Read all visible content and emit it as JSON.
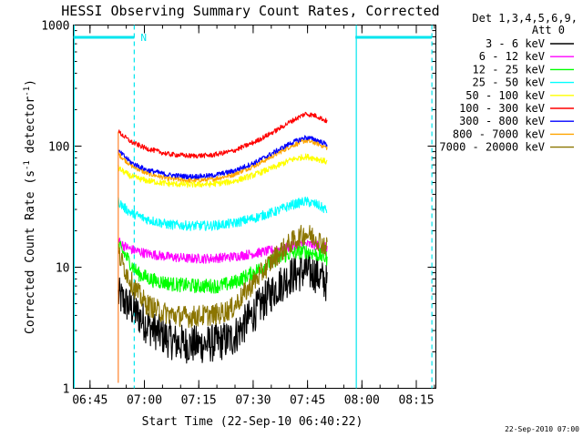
{
  "chart_data": {
    "type": "line",
    "title": "HESSI Observing Summary Count Rates, Corrected",
    "xlabel": "Start Time (22-Sep-10 06:40:22)",
    "ylabel_parts": [
      "Corrected Count Rate (s",
      "-1",
      " detector",
      "-1",
      ")"
    ],
    "yscale": "log",
    "ylim": [
      1,
      1000
    ],
    "xlim_minutes": [
      0,
      100
    ],
    "x_ticks": [
      {
        "m": 4.6,
        "label": "06:45"
      },
      {
        "m": 19.6,
        "label": "07:00"
      },
      {
        "m": 34.6,
        "label": "07:15"
      },
      {
        "m": 49.6,
        "label": "07:30"
      },
      {
        "m": 64.6,
        "label": "07:45"
      },
      {
        "m": 79.6,
        "label": "08:00"
      },
      {
        "m": 94.6,
        "label": "08:15"
      }
    ],
    "y_ticks": [
      {
        "v": 1,
        "label": "1"
      },
      {
        "v": 10,
        "label": "10"
      },
      {
        "v": 100,
        "label": "100"
      },
      {
        "v": 1000,
        "label": "1000"
      }
    ],
    "night_bars": [
      {
        "start": 0,
        "end": 16.8
      },
      {
        "start": 77.8,
        "end": 98.9
      }
    ],
    "vlines_solid": [
      0,
      77.8
    ],
    "vlines_dashed": [
      16.8,
      98.9
    ],
    "saa_label": {
      "text": "N",
      "m": 17.8
    },
    "legend_header": [
      "Det 1,3,4,5,6,9,",
      "Att 0"
    ],
    "series": [
      {
        "name": "3 - 6 keV",
        "color": "#000000",
        "noise": 0.16,
        "points": [
          [
            12.4,
            5.8
          ],
          [
            14,
            5.2
          ],
          [
            16,
            4.6
          ],
          [
            18,
            4.0
          ],
          [
            20,
            3.4
          ],
          [
            24,
            2.8
          ],
          [
            28,
            2.4
          ],
          [
            32,
            2.3
          ],
          [
            36,
            2.3
          ],
          [
            40,
            2.4
          ],
          [
            44,
            2.6
          ],
          [
            48,
            3.6
          ],
          [
            52,
            5.0
          ],
          [
            56,
            6.8
          ],
          [
            60,
            8.5
          ],
          [
            64,
            9.3
          ],
          [
            67,
            8.8
          ],
          [
            70,
            7.3
          ]
        ]
      },
      {
        "name": "6 - 12 keV",
        "color": "#ff00ff",
        "noise": 0.04,
        "points": [
          [
            12.4,
            16.5
          ],
          [
            14,
            15.0
          ],
          [
            16,
            14.0
          ],
          [
            20,
            13.0
          ],
          [
            26,
            12.2
          ],
          [
            32,
            11.8
          ],
          [
            38,
            11.8
          ],
          [
            44,
            12.2
          ],
          [
            50,
            13.0
          ],
          [
            56,
            14.0
          ],
          [
            60,
            14.8
          ],
          [
            64,
            15.5
          ],
          [
            67,
            15.2
          ],
          [
            70,
            14.5
          ]
        ]
      },
      {
        "name": "12 - 25 keV",
        "color": "#00ff00",
        "noise": 0.06,
        "points": [
          [
            12.4,
            15.0
          ],
          [
            14,
            13.0
          ],
          [
            16,
            10.5
          ],
          [
            18,
            8.8
          ],
          [
            22,
            7.8
          ],
          [
            28,
            7.2
          ],
          [
            34,
            7.0
          ],
          [
            40,
            7.0
          ],
          [
            44,
            7.4
          ],
          [
            48,
            8.5
          ],
          [
            52,
            10.0
          ],
          [
            56,
            11.6
          ],
          [
            60,
            13.0
          ],
          [
            64,
            13.6
          ],
          [
            67,
            12.8
          ],
          [
            70,
            11.8
          ]
        ]
      },
      {
        "name": "25 - 50 keV",
        "color": "#00ffff",
        "noise": 0.04,
        "points": [
          [
            12.4,
            35.0
          ],
          [
            14,
            31.0
          ],
          [
            16,
            28.0
          ],
          [
            20,
            25.0
          ],
          [
            26,
            22.5
          ],
          [
            32,
            22.0
          ],
          [
            38,
            22.0
          ],
          [
            44,
            23.0
          ],
          [
            50,
            25.5
          ],
          [
            56,
            29.0
          ],
          [
            60,
            32.5
          ],
          [
            64,
            35.0
          ],
          [
            67,
            33.0
          ],
          [
            70,
            29.5
          ]
        ]
      },
      {
        "name": "50 - 100 keV",
        "color": "#ffff00",
        "noise": 0.025,
        "points": [
          [
            12.4,
            66.0
          ],
          [
            14,
            61.0
          ],
          [
            16,
            56.0
          ],
          [
            20,
            52.0
          ],
          [
            26,
            49.0
          ],
          [
            32,
            48.0
          ],
          [
            38,
            48.5
          ],
          [
            44,
            51.0
          ],
          [
            50,
            58.0
          ],
          [
            56,
            68.0
          ],
          [
            60,
            77.0
          ],
          [
            64,
            82.0
          ],
          [
            67,
            79.0
          ],
          [
            70,
            74.0
          ]
        ]
      },
      {
        "name": "100 - 300 keV",
        "color": "#ff0000",
        "noise": 0.02,
        "points": [
          [
            12.4,
            132.0
          ],
          [
            14,
            120.0
          ],
          [
            16,
            108.0
          ],
          [
            20,
            96.0
          ],
          [
            26,
            86.0
          ],
          [
            32,
            83.0
          ],
          [
            38,
            84.0
          ],
          [
            44,
            91.0
          ],
          [
            50,
            108.0
          ],
          [
            56,
            135.0
          ],
          [
            60,
            160.0
          ],
          [
            64,
            185.0
          ],
          [
            67,
            178.0
          ],
          [
            70,
            160.0
          ]
        ]
      },
      {
        "name": "300 - 800 keV",
        "color": "#0000ff",
        "noise": 0.02,
        "points": [
          [
            12.4,
            91.0
          ],
          [
            14,
            83.0
          ],
          [
            16,
            73.0
          ],
          [
            20,
            64.0
          ],
          [
            26,
            58.0
          ],
          [
            32,
            56.0
          ],
          [
            38,
            57.0
          ],
          [
            44,
            62.0
          ],
          [
            50,
            73.0
          ],
          [
            56,
            91.0
          ],
          [
            60,
            106.0
          ],
          [
            64,
            118.0
          ],
          [
            67,
            113.0
          ],
          [
            70,
            103.0
          ]
        ]
      },
      {
        "name": "800 - 7000 keV",
        "color": "#ffa500",
        "noise": 0.02,
        "points": [
          [
            12.4,
            86.0
          ],
          [
            14,
            78.0
          ],
          [
            16,
            69.0
          ],
          [
            20,
            60.0
          ],
          [
            26,
            54.0
          ],
          [
            32,
            52.0
          ],
          [
            38,
            53.0
          ],
          [
            44,
            58.0
          ],
          [
            50,
            69.0
          ],
          [
            56,
            86.0
          ],
          [
            60,
            100.0
          ],
          [
            64,
            111.0
          ],
          [
            67,
            106.0
          ],
          [
            70,
            97.0
          ]
        ]
      },
      {
        "name": "7000 - 20000 keV",
        "color": "#8b7500",
        "noise": 0.09,
        "points": [
          [
            12.4,
            13.0
          ],
          [
            14,
            10.0
          ],
          [
            16,
            7.5
          ],
          [
            18,
            6.0
          ],
          [
            20,
            5.0
          ],
          [
            24,
            4.3
          ],
          [
            28,
            4.0
          ],
          [
            32,
            3.9
          ],
          [
            36,
            4.0
          ],
          [
            40,
            4.1
          ],
          [
            44,
            4.6
          ],
          [
            48,
            6.5
          ],
          [
            52,
            9.0
          ],
          [
            56,
            12.5
          ],
          [
            60,
            16.0
          ],
          [
            64,
            19.0
          ],
          [
            67,
            17.5
          ],
          [
            70,
            14.5
          ]
        ]
      }
    ]
  },
  "footer": {
    "date_stamp": "22-Sep-2010 07:00"
  }
}
